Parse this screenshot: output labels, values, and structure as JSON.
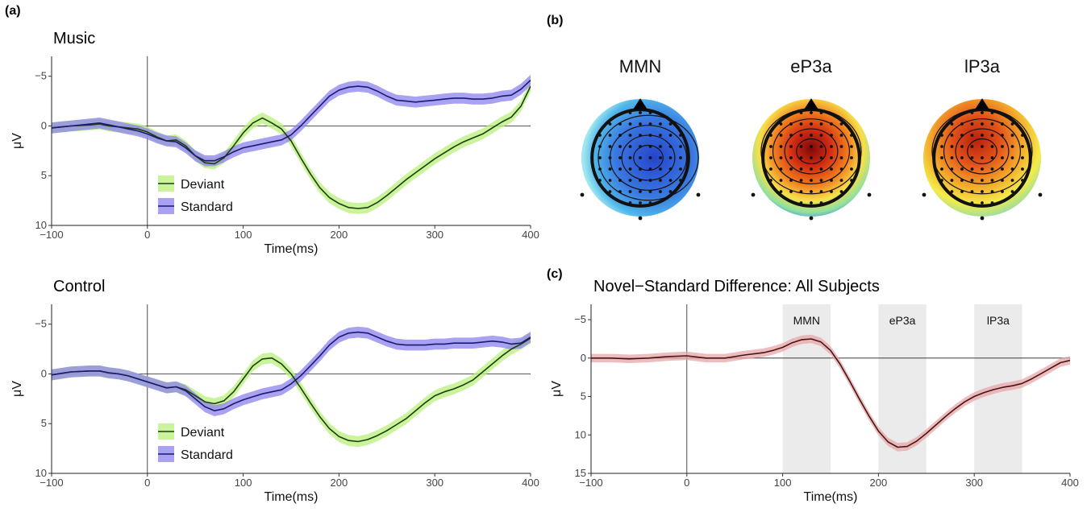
{
  "panels": {
    "a_label": "(a)",
    "b_label": "(b)",
    "c_label": "(c)"
  },
  "chart_data": [
    {
      "type": "line",
      "panel": "a",
      "title": "Music",
      "xlabel": "Time(ms)",
      "ylabel": "μV",
      "xlim": [
        -100,
        400
      ],
      "ylim": [
        -7,
        10
      ],
      "y_reversed": true,
      "xticks": [
        -100,
        0,
        100,
        200,
        300,
        400
      ],
      "yticks": [
        -5,
        0,
        5,
        10
      ],
      "grid": false,
      "legend": "bottom-left",
      "x": [
        -100,
        -80,
        -60,
        -50,
        -40,
        -30,
        -20,
        -10,
        0,
        10,
        20,
        30,
        40,
        50,
        60,
        70,
        80,
        90,
        100,
        110,
        120,
        130,
        140,
        150,
        160,
        170,
        180,
        190,
        200,
        210,
        220,
        230,
        240,
        250,
        260,
        270,
        280,
        290,
        300,
        310,
        320,
        330,
        340,
        350,
        360,
        370,
        380,
        390,
        400
      ],
      "series": [
        {
          "name": "Deviant",
          "color": "#1f3d0c",
          "band_color": "#b7f07a",
          "values": [
            0.2,
            0.0,
            -0.1,
            -0.2,
            0.0,
            0.1,
            0.2,
            0.3,
            0.6,
            1.1,
            1.5,
            1.4,
            2.0,
            3.0,
            3.7,
            3.8,
            3.2,
            2.0,
            0.7,
            -0.3,
            -0.8,
            -0.3,
            0.3,
            1.5,
            3.2,
            4.8,
            6.2,
            7.2,
            7.8,
            8.2,
            8.3,
            8.2,
            7.7,
            7.0,
            6.2,
            5.4,
            4.7,
            4.0,
            3.3,
            2.7,
            2.1,
            1.6,
            1.2,
            0.8,
            0.2,
            -0.4,
            -0.9,
            -2.0,
            -4.0
          ]
        },
        {
          "name": "Standard",
          "color": "#1c1a70",
          "band_color": "#8c82ee",
          "values": [
            0.2,
            0.0,
            -0.2,
            -0.3,
            -0.1,
            0.1,
            0.3,
            0.5,
            0.8,
            1.2,
            1.5,
            1.6,
            2.2,
            3.0,
            3.5,
            3.5,
            3.1,
            2.6,
            2.2,
            2.0,
            1.8,
            1.6,
            1.4,
            0.9,
            0.0,
            -1.0,
            -2.0,
            -3.0,
            -3.6,
            -3.9,
            -4.0,
            -3.9,
            -3.5,
            -3.0,
            -2.6,
            -2.5,
            -2.4,
            -2.5,
            -2.6,
            -2.7,
            -2.8,
            -2.8,
            -2.7,
            -2.7,
            -2.8,
            -3.0,
            -3.1,
            -3.7,
            -4.6
          ]
        }
      ]
    },
    {
      "type": "line",
      "panel": "a",
      "title": "Control",
      "xlabel": "Time(ms)",
      "ylabel": "μV",
      "xlim": [
        -100,
        400
      ],
      "ylim": [
        -7,
        10
      ],
      "y_reversed": true,
      "xticks": [
        -100,
        0,
        100,
        200,
        300,
        400
      ],
      "yticks": [
        -5,
        0,
        5,
        10
      ],
      "grid": false,
      "legend": "bottom-left",
      "x": [
        -100,
        -80,
        -60,
        -50,
        -40,
        -30,
        -20,
        -10,
        0,
        10,
        20,
        30,
        40,
        50,
        60,
        70,
        80,
        90,
        100,
        110,
        120,
        130,
        140,
        150,
        160,
        170,
        180,
        190,
        200,
        210,
        220,
        230,
        240,
        250,
        260,
        270,
        280,
        290,
        300,
        310,
        320,
        330,
        340,
        350,
        360,
        370,
        380,
        390,
        400
      ],
      "series": [
        {
          "name": "Deviant",
          "color": "#1f3d0c",
          "band_color": "#b7f07a",
          "values": [
            0.1,
            -0.2,
            -0.3,
            -0.3,
            -0.1,
            0.0,
            0.2,
            0.5,
            0.8,
            1.1,
            1.4,
            1.3,
            1.6,
            2.2,
            2.8,
            3.0,
            2.7,
            1.8,
            0.5,
            -0.8,
            -1.5,
            -1.6,
            -1.0,
            0.0,
            1.4,
            2.9,
            4.3,
            5.5,
            6.3,
            6.7,
            6.8,
            6.6,
            6.2,
            5.7,
            5.1,
            4.5,
            3.7,
            2.9,
            2.2,
            1.8,
            1.5,
            1.1,
            0.6,
            -0.2,
            -1.0,
            -1.8,
            -2.5,
            -3.0,
            -3.6
          ]
        },
        {
          "name": "Standard",
          "color": "#1c1a70",
          "band_color": "#8c82ee",
          "values": [
            0.1,
            -0.2,
            -0.3,
            -0.3,
            -0.1,
            0.0,
            0.2,
            0.5,
            0.8,
            1.1,
            1.4,
            1.3,
            1.7,
            2.5,
            3.3,
            3.7,
            3.5,
            3.0,
            2.6,
            2.3,
            2.0,
            1.8,
            1.6,
            1.0,
            0.2,
            -0.8,
            -1.8,
            -2.9,
            -3.7,
            -4.1,
            -4.2,
            -4.1,
            -3.7,
            -3.3,
            -3.0,
            -2.9,
            -2.9,
            -2.9,
            -3.0,
            -3.0,
            -3.1,
            -3.1,
            -3.1,
            -3.2,
            -3.3,
            -3.2,
            -3.0,
            -3.1,
            -3.7
          ]
        }
      ]
    },
    {
      "type": "line",
      "panel": "c",
      "title": "Novel−Standard Difference: All Subjects",
      "xlabel": "Time(ms)",
      "ylabel": "μV",
      "xlim": [
        -100,
        400
      ],
      "ylim": [
        -7,
        15
      ],
      "y_reversed": true,
      "xticks": [
        -100,
        0,
        100,
        200,
        300,
        400
      ],
      "yticks": [
        -5,
        0,
        5,
        10,
        15
      ],
      "grid": false,
      "shaded_windows": [
        {
          "label": "MMN",
          "x0": 100,
          "x1": 150
        },
        {
          "label": "eP3a",
          "x0": 200,
          "x1": 250
        },
        {
          "label": "lP3a",
          "x0": 300,
          "x1": 350
        }
      ],
      "x": [
        -100,
        -80,
        -60,
        -40,
        -20,
        0,
        20,
        40,
        60,
        80,
        90,
        100,
        110,
        120,
        130,
        140,
        150,
        160,
        170,
        180,
        190,
        200,
        210,
        220,
        230,
        240,
        250,
        260,
        270,
        280,
        290,
        300,
        310,
        320,
        330,
        340,
        350,
        360,
        370,
        380,
        390,
        400
      ],
      "series": [
        {
          "color": "#4a1410",
          "band_color": "#e6a6a8",
          "values": [
            0.0,
            0.0,
            0.1,
            0.0,
            -0.2,
            -0.3,
            0.0,
            0.0,
            -0.4,
            -0.7,
            -1.0,
            -1.4,
            -2.0,
            -2.4,
            -2.5,
            -2.1,
            -1.0,
            0.8,
            3.0,
            5.3,
            7.5,
            9.5,
            10.9,
            11.6,
            11.5,
            10.8,
            9.8,
            8.7,
            7.6,
            6.6,
            5.7,
            5.0,
            4.5,
            4.1,
            3.8,
            3.6,
            3.3,
            2.7,
            2.0,
            1.3,
            0.6,
            0.3
          ]
        }
      ]
    },
    {
      "type": "heatmap",
      "panel": "b",
      "maps": [
        {
          "label": "MMN",
          "center": "#2b4fd8",
          "edge": "#7fd8f4"
        },
        {
          "label": "eP3a",
          "center": "#8a0f0f",
          "edge": "#7fd8f4"
        },
        {
          "label": "lP3a",
          "center": "#c2310f",
          "edge": "#f4f14a"
        }
      ]
    }
  ]
}
